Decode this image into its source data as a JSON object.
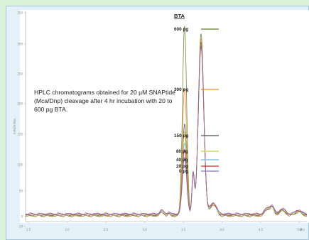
{
  "chart_data": {
    "type": "line",
    "annotation": "HPLC chromatograms obtained for 20 µM SNAPtide (Mca/Dnp) cleavage after 4 hr incubation with 20 to 600 pg BTA.",
    "ylabel": "mAU/mAbs",
    "xlabel": "Min",
    "legend_title": "BTA",
    "legend_placement": "center",
    "grid": false,
    "x_ticks": [
      "1.5",
      "2.0",
      "2.5",
      "3.0",
      "3.5",
      "4.0",
      "4.5",
      "5.0",
      "5.5",
      "6.0"
    ],
    "y_ticks": [
      "350",
      "300",
      "250",
      "200",
      "150",
      "100",
      "50",
      "0",
      "-10"
    ],
    "xlim": [
      1.5,
      6.1
    ],
    "ylim": [
      -10,
      360
    ],
    "series": [
      {
        "name": "600 pg",
        "color": "#5f7d2e",
        "peak1": 335,
        "peak2": 320
      },
      {
        "name": "300 pg",
        "color": "#f08a24",
        "peak1": 225,
        "peak2": 312
      },
      {
        "name": "150 pg",
        "color": "#4d4d4d",
        "peak1": 160,
        "peak2": 305
      },
      {
        "name": "80 pg",
        "color": "#c3d341",
        "peak1": 145,
        "peak2": 300
      },
      {
        "name": "40 pg",
        "color": "#79b8e0",
        "peak1": 125,
        "peak2": 298
      },
      {
        "name": "20 pg",
        "color": "#d02828",
        "peak1": 115,
        "peak2": 295
      },
      {
        "name": "0 pg",
        "color": "#8a70b4",
        "peak1": 100,
        "peak2": 292
      }
    ]
  }
}
